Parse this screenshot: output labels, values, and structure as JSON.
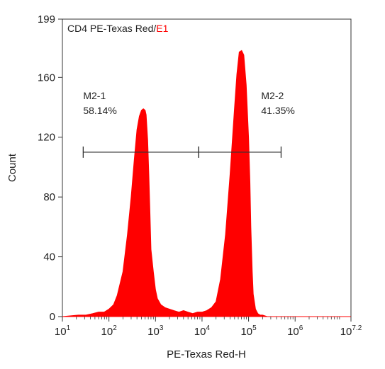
{
  "chart_data": {
    "type": "area",
    "title_prefix": "CD4 PE-Texas Red/",
    "title_highlight": "E1",
    "xlabel": "PE-Texas Red-H",
    "ylabel": "Count",
    "x_scale": "log10",
    "xlim": [
      10,
      15848931.92
    ],
    "ylim": [
      0,
      199
    ],
    "y_ticks": [
      0,
      40,
      80,
      120,
      160,
      199
    ],
    "x_ticks": [
      {
        "value": 10,
        "base": "10",
        "exp": "1"
      },
      {
        "value": 100,
        "base": "10",
        "exp": "2"
      },
      {
        "value": 1000,
        "base": "10",
        "exp": "3"
      },
      {
        "value": 10000,
        "base": "10",
        "exp": "4"
      },
      {
        "value": 100000,
        "base": "10",
        "exp": "5"
      },
      {
        "value": 1000000,
        "base": "10",
        "exp": "6"
      },
      {
        "value": 15848931.92,
        "base": "10",
        "exp": "7.2"
      }
    ],
    "grid": false,
    "fill_color": "#ff0000",
    "highlight_color": "#ff0000",
    "series": [
      {
        "x": [
          10,
          22,
          32,
          45,
          60,
          79,
          100,
          126,
          150,
          200,
          250,
          300,
          350,
          400,
          450,
          500,
          550,
          600,
          630,
          680,
          720,
          760,
          800,
          900,
          1000,
          1100,
          1300,
          1600,
          2000,
          2500,
          3200,
          4000,
          5000,
          6300,
          8000,
          10000,
          12600,
          16000,
          20000,
          25000,
          32000,
          40000,
          50000,
          56000,
          63000,
          71000,
          79000,
          89000,
          100000,
          107000,
          112000,
          120000,
          126000,
          141000,
          158000,
          178000,
          200000,
          251000,
          316000,
          500000,
          1000000,
          15848931.92
        ],
        "values": [
          0,
          1,
          1,
          2,
          3,
          3,
          5,
          8,
          14,
          30,
          55,
          80,
          105,
          125,
          134,
          138,
          139,
          138,
          135,
          118,
          95,
          70,
          45,
          30,
          18,
          12,
          8,
          6,
          5,
          4,
          3,
          4,
          3,
          2,
          3,
          3,
          4,
          6,
          10,
          25,
          55,
          95,
          140,
          162,
          177,
          178,
          175,
          155,
          120,
          90,
          60,
          30,
          15,
          5,
          2,
          1,
          1,
          0,
          0,
          0,
          0,
          0
        ]
      }
    ],
    "gate": {
      "segments": [
        {
          "label": "M2-1",
          "percent": "58.14%",
          "from": 28,
          "to": 8500
        },
        {
          "label": "M2-2",
          "percent": "41.35%",
          "from": 8500,
          "to": 500000
        }
      ],
      "y_level": 110
    }
  }
}
